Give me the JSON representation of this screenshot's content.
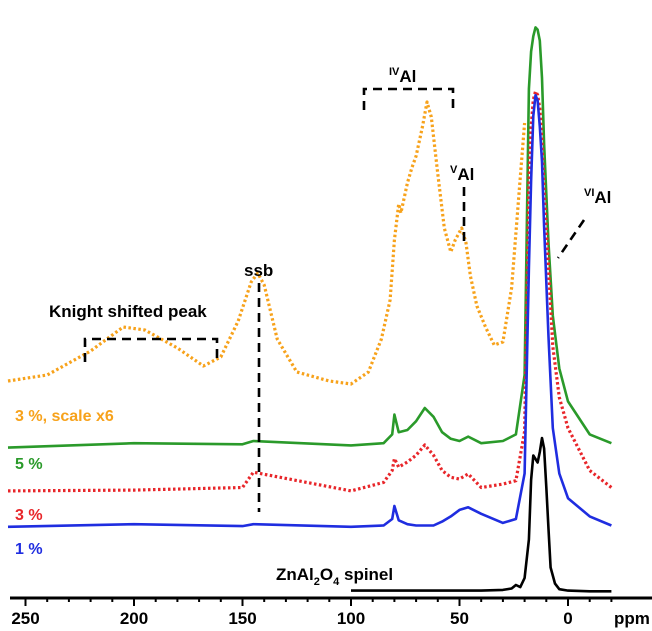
{
  "chart_data": {
    "type": "line",
    "xlabel": "ppm",
    "x_reversed": true,
    "xlim": [
      260,
      -20
    ],
    "x_ticks": [
      250,
      200,
      150,
      100,
      50,
      0
    ],
    "x_tick_labels": [
      "250",
      "200",
      "150",
      "100",
      "50",
      "0"
    ],
    "series": [
      {
        "key": "orange",
        "name": "3 %, scale x6",
        "color": "#f7a21b",
        "style": "dotted",
        "x": [
          260,
          240,
          220,
          205,
          195,
          180,
          168,
          160,
          152,
          146,
          143,
          140,
          134,
          125,
          110,
          100,
          92,
          86,
          82,
          80,
          78,
          77,
          74,
          72,
          70,
          67,
          65,
          63,
          60,
          57,
          54,
          52,
          49,
          47,
          45,
          42,
          38,
          34,
          30,
          26,
          22,
          20
        ],
        "y": [
          0.07,
          0.09,
          0.17,
          0.25,
          0.24,
          0.18,
          0.12,
          0.15,
          0.27,
          0.4,
          0.43,
          0.39,
          0.21,
          0.1,
          0.07,
          0.06,
          0.1,
          0.21,
          0.34,
          0.54,
          0.66,
          0.63,
          0.73,
          0.78,
          0.82,
          0.92,
          1.0,
          0.95,
          0.76,
          0.58,
          0.5,
          0.54,
          0.58,
          0.53,
          0.42,
          0.32,
          0.25,
          0.19,
          0.2,
          0.38,
          0.75,
          0.93
        ]
      },
      {
        "key": "green",
        "name": "5 %",
        "color": "#2a9a2a",
        "style": "solid",
        "x": [
          260,
          200,
          150,
          145,
          100,
          85,
          81,
          80,
          78,
          74,
          70,
          66,
          62,
          58,
          54,
          50,
          46,
          40,
          30,
          24,
          20,
          18,
          17,
          16,
          15,
          14,
          13,
          12,
          11,
          9,
          7,
          4,
          0,
          -10,
          -20
        ],
        "y": [
          0.02,
          0.04,
          0.035,
          0.05,
          0.03,
          0.04,
          0.08,
          0.17,
          0.09,
          0.1,
          0.14,
          0.2,
          0.16,
          0.09,
          0.06,
          0.05,
          0.07,
          0.04,
          0.05,
          0.08,
          0.35,
          1.65,
          1.82,
          1.89,
          1.93,
          1.92,
          1.87,
          1.7,
          1.4,
          0.95,
          0.62,
          0.38,
          0.23,
          0.08,
          0.04
        ]
      },
      {
        "key": "red",
        "name": "3 %",
        "color": "#e8262a",
        "style": "dotted",
        "x": [
          260,
          200,
          150,
          145,
          100,
          85,
          81,
          80,
          78,
          74,
          70,
          66,
          62,
          58,
          54,
          50,
          46,
          40,
          30,
          24,
          20,
          18,
          17,
          16,
          15,
          14,
          13,
          12,
          11,
          9,
          7,
          4,
          0,
          -10,
          -20
        ],
        "y": [
          0.03,
          0.035,
          0.05,
          0.14,
          0.03,
          0.08,
          0.15,
          0.22,
          0.17,
          0.2,
          0.24,
          0.3,
          0.24,
          0.15,
          0.11,
          0.1,
          0.13,
          0.05,
          0.07,
          0.09,
          0.38,
          1.84,
          2.17,
          2.33,
          2.38,
          2.36,
          2.28,
          2.08,
          1.8,
          1.35,
          0.88,
          0.58,
          0.4,
          0.15,
          0.05
        ]
      },
      {
        "key": "blue",
        "name": "1 %",
        "color": "#1f2de0",
        "style": "solid",
        "x": [
          260,
          200,
          150,
          145,
          100,
          85,
          81,
          80,
          78,
          74,
          70,
          62,
          58,
          54,
          50,
          46,
          40,
          30,
          24,
          20,
          18,
          17,
          16,
          15,
          14,
          13,
          12,
          11,
          9,
          7,
          4,
          0,
          -10,
          -20
        ],
        "y": [
          0.04,
          0.06,
          0.045,
          0.06,
          0.04,
          0.05,
          0.1,
          0.2,
          0.09,
          0.06,
          0.05,
          0.05,
          0.08,
          0.12,
          0.17,
          0.19,
          0.14,
          0.07,
          0.1,
          0.45,
          2.03,
          2.7,
          3.2,
          3.36,
          3.32,
          3.12,
          2.85,
          2.35,
          1.5,
          0.8,
          0.45,
          0.26,
          0.12,
          0.05
        ]
      },
      {
        "key": "black",
        "name": "ZnAl2O4 spinel",
        "color": "#000000",
        "style": "solid",
        "x": [
          100,
          60,
          40,
          30,
          26,
          24,
          22,
          20,
          18,
          17,
          16,
          15,
          14,
          13,
          12,
          11,
          10,
          9,
          8,
          6,
          4,
          0,
          -10,
          -20
        ],
        "y": [
          0.02,
          0.02,
          0.02,
          0.03,
          0.05,
          0.1,
          0.07,
          0.2,
          0.75,
          1.6,
          1.95,
          1.9,
          1.85,
          2.0,
          2.2,
          2.05,
          1.5,
          0.9,
          0.35,
          0.12,
          0.04,
          0.02,
          0.01,
          0.01
        ]
      }
    ],
    "legend_text": {
      "orange": "3 %, scale x6",
      "green": "5 %",
      "red": "3 %",
      "blue": "1 %",
      "black_main": "ZnAl",
      "black_sub1": "2",
      "black_mid": "O",
      "black_sub2": "4",
      "black_tail": " spinel"
    },
    "annotations": {
      "knight": "Knight shifted peak",
      "ssb": "ssb",
      "iv_sup": "IV",
      "v_sup": "V",
      "vi_sup": "VI",
      "al": "Al"
    }
  }
}
